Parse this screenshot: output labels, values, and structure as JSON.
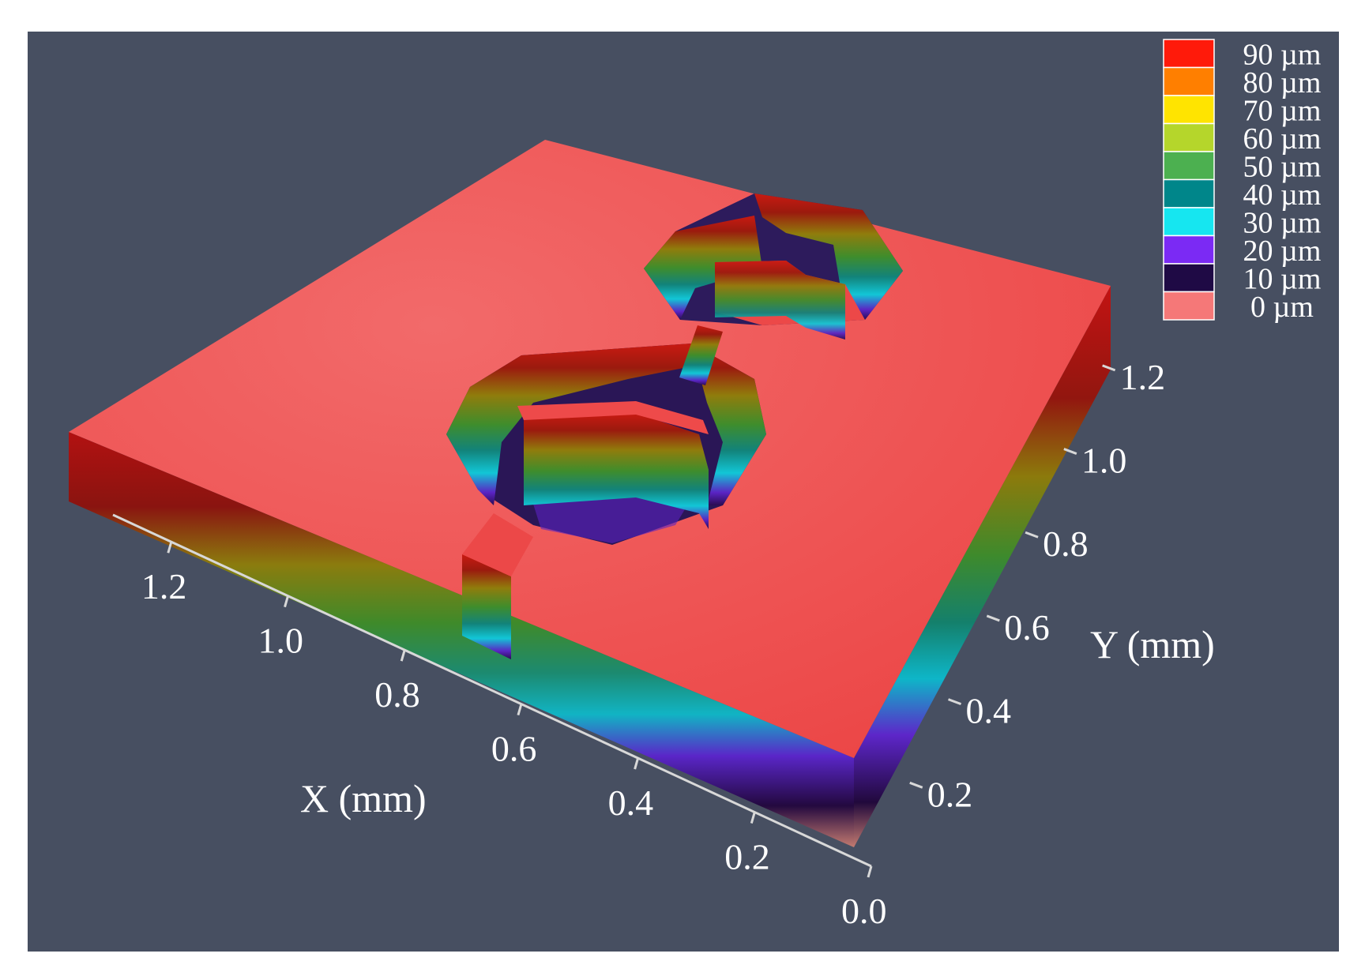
{
  "chart_data": {
    "type": "3d-surface",
    "title": "",
    "xlabel": "X (mm)",
    "ylabel": "Y (mm)",
    "x_ticks": [
      "0.0",
      "0.2",
      "0.4",
      "0.6",
      "0.8",
      "1.0",
      "1.2"
    ],
    "y_ticks": [
      "0.2",
      "0.4",
      "0.6",
      "0.8",
      "1.0",
      "1.2"
    ],
    "xlim": [
      0,
      1.3
    ],
    "ylim": [
      0,
      1.3
    ],
    "colorbar": {
      "unit": "µm",
      "entries": [
        {
          "label": "90 µm",
          "value": 90,
          "color": "#ff1a0a"
        },
        {
          "label": "80 µm",
          "value": 80,
          "color": "#ff7f00"
        },
        {
          "label": "70 µm",
          "value": 70,
          "color": "#ffe400"
        },
        {
          "label": "60 µm",
          "value": 60,
          "color": "#b5d62b"
        },
        {
          "label": "50 µm",
          "value": 50,
          "color": "#4cb050"
        },
        {
          "label": "40 µm",
          "value": 40,
          "color": "#00868a"
        },
        {
          "label": "30 µm",
          "value": 30,
          "color": "#16e6f0"
        },
        {
          "label": "20 µm",
          "value": 20,
          "color": "#7b2af4"
        },
        {
          "label": "10 µm",
          "value": 10,
          "color": "#1f0a45"
        },
        {
          "label": "0 µm",
          "value": 0,
          "color": "#f57878"
        }
      ]
    },
    "surface_color": "#ef4848",
    "background": "#474f61",
    "legend_position": "top-right"
  }
}
